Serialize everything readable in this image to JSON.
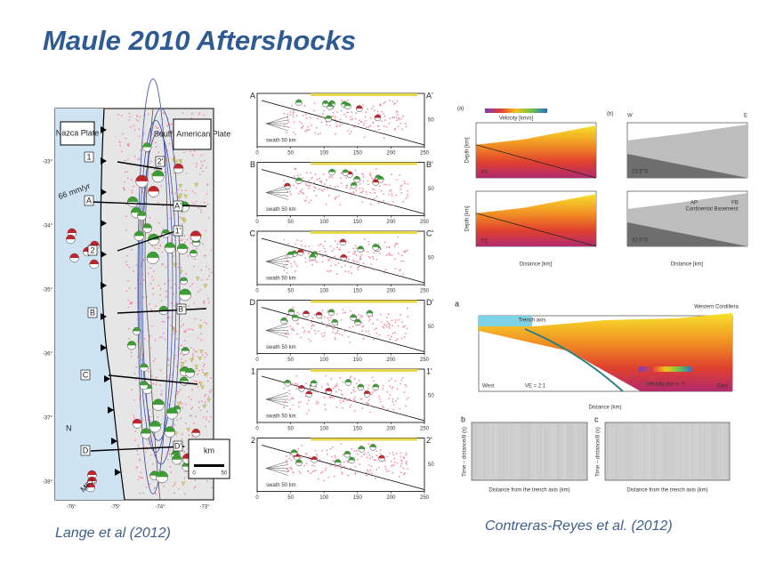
{
  "title": "Maule 2010 Aftershocks",
  "left_figure": {
    "caption": "Lange et al (2012)",
    "map": {
      "plates": [
        "Nazca Plate",
        "South American Plate"
      ],
      "rate": "66 mm/yr",
      "fault": "MFZ",
      "north": "N",
      "scale_label": "km",
      "scale_ticks": [
        "0",
        "50"
      ],
      "lat_labels": [
        "-33°",
        "-34°",
        "-35°",
        "-36°",
        "-37°",
        "-38°"
      ],
      "lon_labels": [
        "-76°",
        "-75°",
        "-74°",
        "-73°"
      ],
      "profile_labels": [
        "1",
        "2'",
        "A",
        "A'",
        "1'",
        "2",
        "B",
        "B'",
        "C",
        "D",
        "D'"
      ]
    },
    "sections": [
      {
        "start": "A",
        "end": "A'",
        "swath": "swath 50 km"
      },
      {
        "start": "B",
        "end": "B'",
        "swath": "swath 50 km"
      },
      {
        "start": "C",
        "end": "C'",
        "swath": "swath 50 km"
      },
      {
        "start": "D",
        "end": "D'",
        "swath": "swath 50 km"
      },
      {
        "start": "1",
        "end": "1'",
        "swath": "swath 50 km"
      },
      {
        "start": "2",
        "end": "2'",
        "swath": "swath 50 km"
      }
    ],
    "section_xticks": [
      0,
      50,
      100,
      150,
      200,
      250
    ],
    "section_depth_label": "50"
  },
  "right_figure": {
    "caption": "Contreras-Reyes et al. (2012)",
    "top": {
      "panel_a": "(a)",
      "panel_b": "(b)",
      "velocity_label": "Velocity [km/s]",
      "depth_label": "Depth [km]",
      "distance_label": "Distance [km]",
      "profile_1": "P1",
      "profile_2": "P2",
      "west": "W",
      "east": "E",
      "lat_1": "23.5°S",
      "lat_2": "32.5°S",
      "units": [
        "AP",
        "Continental Basement",
        "FB"
      ]
    },
    "bottom": {
      "panel_a": "a",
      "panel_b": "b",
      "panel_c": "c",
      "trench": "Trench axis",
      "cordillera": "Western Cordillera",
      "west": "West",
      "east": "East",
      "ve": "VE = 2:1",
      "velocity_label": "Velocity (km s⁻¹)",
      "distance_label": "Distance (km)",
      "seis_distance_label": "Distance from the trench axis (km)",
      "time_label": "Time – distance/8 (s)"
    }
  }
}
